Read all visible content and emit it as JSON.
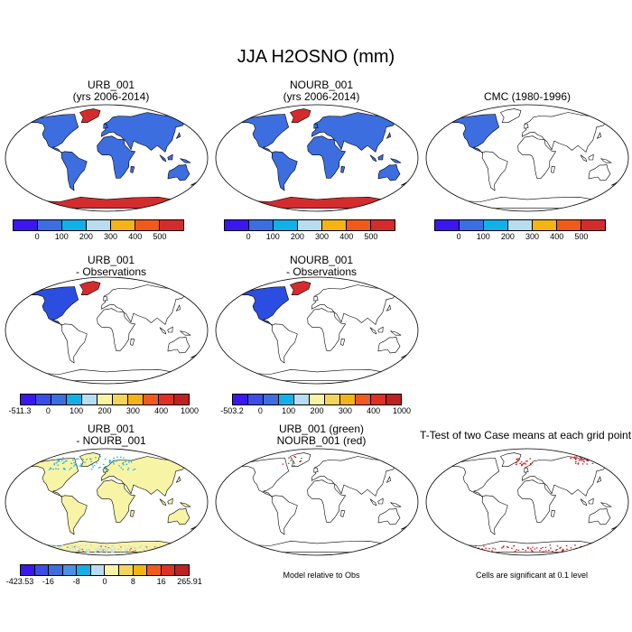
{
  "figure_title": "JJA H2OSNO (mm)",
  "panels": [
    {
      "title1": "URB_001",
      "title2": "(yrs 2006-2014)"
    },
    {
      "title1": "NOURB_001",
      "title2": "(yrs 2006-2014)"
    },
    {
      "title1": "CMC (1980-1996)",
      "title2": ""
    },
    {
      "title1": "URB_001",
      "title2": "- Observations"
    },
    {
      "title1": "NOURB_001",
      "title2": "- Observations"
    },
    {
      "title1": "URB_001",
      "title2": "- NOURB_001"
    },
    {
      "title1": "URB_001 (green)",
      "title2": "NOURB_001 (red)"
    },
    {
      "title1": "T-Test of two Case means at each grid point",
      "title2": ""
    }
  ],
  "colorbars": {
    "abs": {
      "colors": [
        "#3c16ee",
        "#3c6ee0",
        "#12b0e8",
        "#b8dcf0",
        "#f4b416",
        "#f05a1a",
        "#d42c2c"
      ],
      "labels": [
        "0",
        "100",
        "200",
        "300",
        "400",
        "500"
      ]
    },
    "diff1": {
      "colors": [
        "#3c16ee",
        "#3a4ee6",
        "#3c6ee0",
        "#12b0e8",
        "#b8dcf0",
        "#f8f4a6",
        "#f4d45a",
        "#f4b416",
        "#f05a1a",
        "#e03022",
        "#c02020"
      ],
      "labels": [
        "-511.3",
        "0",
        "100",
        "200",
        "300",
        "400",
        "1000"
      ]
    },
    "diff2": {
      "colors": [
        "#3c16ee",
        "#3a4ee6",
        "#3c6ee0",
        "#12b0e8",
        "#b8dcf0",
        "#f8f4a6",
        "#f4d45a",
        "#f4b416",
        "#f05a1a",
        "#e03022",
        "#c02020"
      ],
      "labels": [
        "-503.2",
        "0",
        "100",
        "200",
        "300",
        "400",
        "1000"
      ]
    },
    "urbdiff": {
      "colors": [
        "#3c16ee",
        "#3a4ee6",
        "#3c6ee0",
        "#4a90e8",
        "#12b0e8",
        "#b8dcf0",
        "#f8f4a6",
        "#f4d45a",
        "#f4b416",
        "#f05a1a",
        "#e03022",
        "#c02020"
      ],
      "labels": [
        "-423.53",
        "-16",
        "-8",
        "0",
        "8",
        "16",
        "265.91"
      ]
    }
  },
  "notes": {
    "model_rel": "Model relative to Obs",
    "signif": "Cells are significant at 0.1 level"
  },
  "colors": {
    "snow_fill": "#3c6ee0",
    "antarctic_fill": "#d42c2c",
    "greenland_fill": "#d42c2c",
    "diff_fill": "#f8f4a6",
    "obs_diff_fill": "#2c4ee0",
    "signif_marker": "#e01010"
  }
}
